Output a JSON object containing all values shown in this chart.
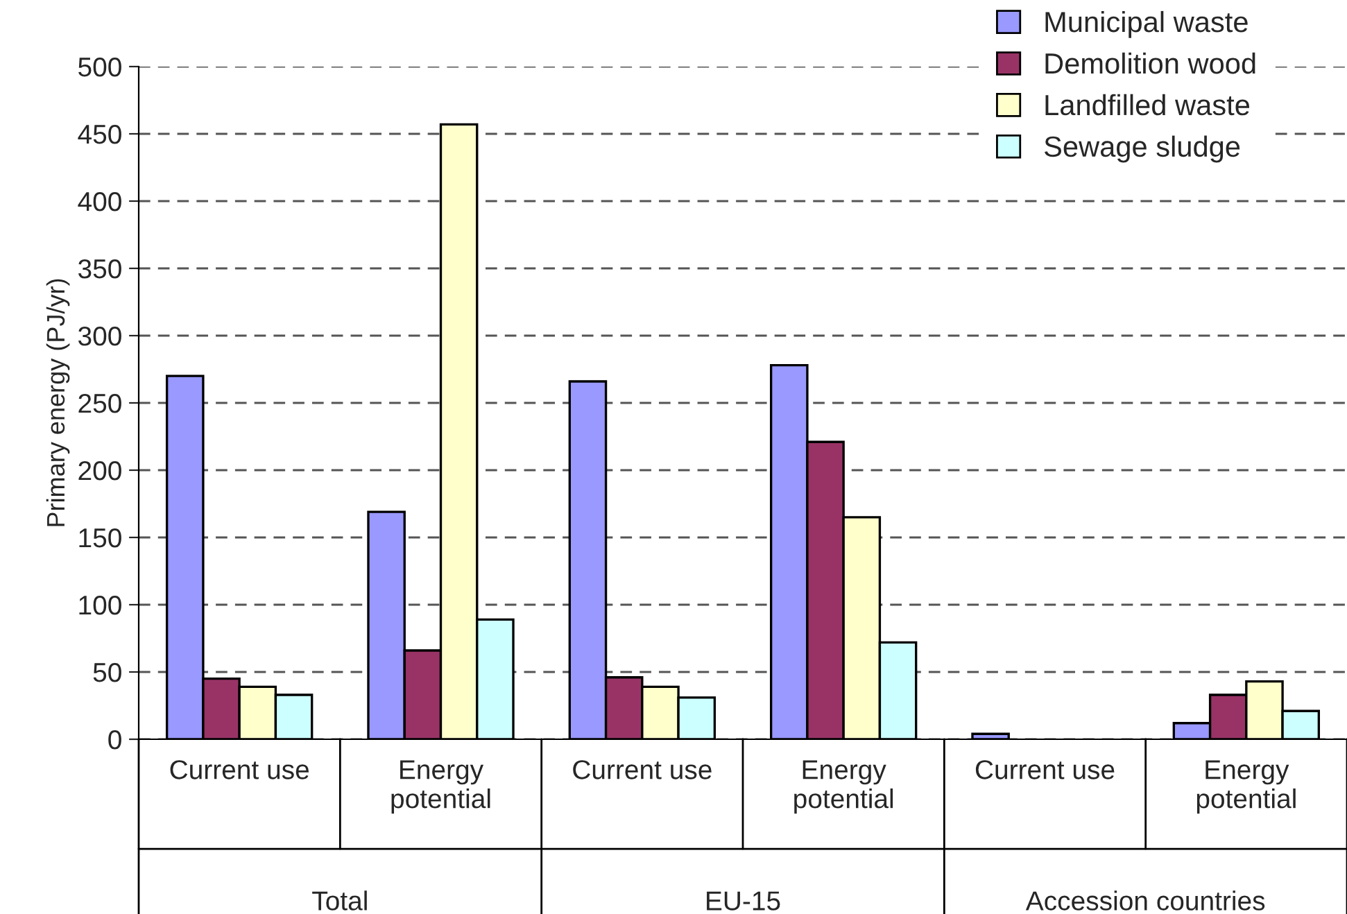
{
  "chart_data": {
    "type": "bar",
    "ylabel": "Primary energy (PJ/yr)",
    "categories": [
      "Current use",
      "Energy\npotential",
      "Current use",
      "Energy\npotential",
      "Current use",
      "Energy\npotential"
    ],
    "annotations": [
      "Total",
      "EU-15",
      "Accession countries"
    ],
    "series": [
      {
        "name": "Municipal waste",
        "color": "#9999ff",
        "values": [
          270,
          169,
          266,
          278,
          4,
          12
        ]
      },
      {
        "name": "Demolition wood",
        "color": "#993366",
        "values": [
          45,
          66,
          46,
          221,
          null,
          33
        ]
      },
      {
        "name": "Landfilled waste",
        "color": "#ffffcc",
        "values": [
          39,
          457,
          39,
          165,
          null,
          43
        ]
      },
      {
        "name": "Sewage sludge",
        "color": "#ccffff",
        "values": [
          33,
          89,
          31,
          72,
          null,
          21
        ]
      }
    ],
    "ylim": [
      0,
      500
    ],
    "yticks": [
      0,
      50,
      100,
      150,
      200,
      250,
      300,
      350,
      400,
      450,
      500
    ],
    "grid": "y",
    "legend": "top right"
  }
}
